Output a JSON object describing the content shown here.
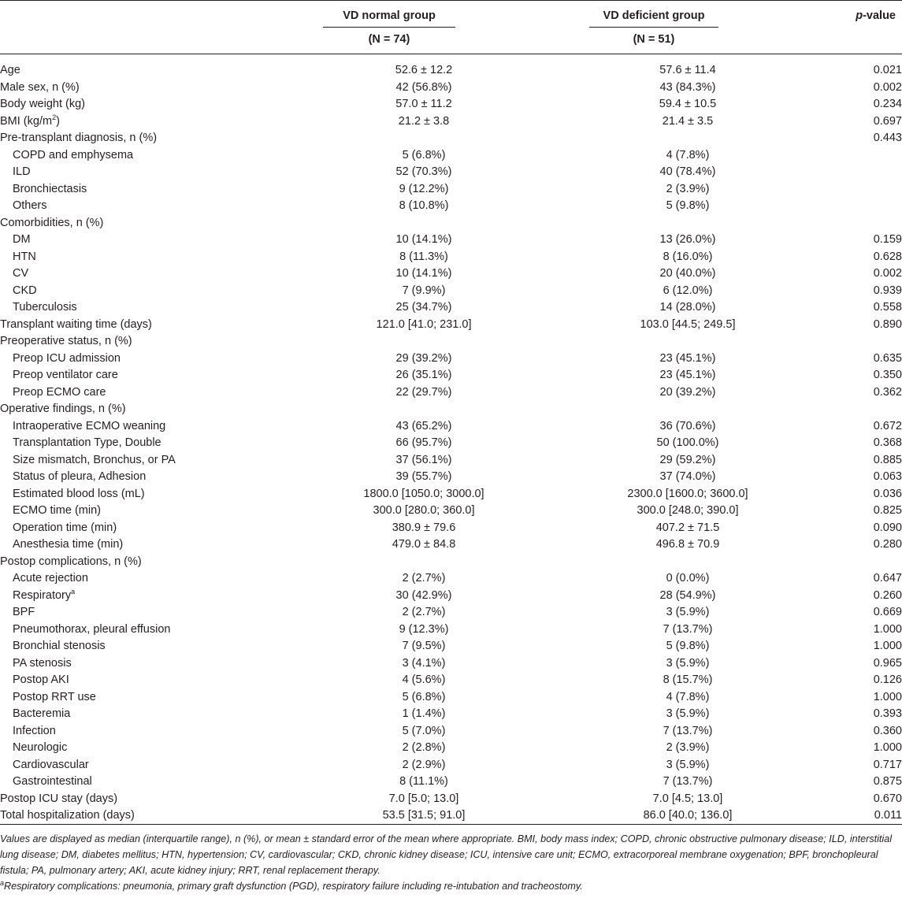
{
  "header": {
    "normal_group": "VD normal group",
    "normal_n": "(N = 74)",
    "deficient_group": "VD deficient group",
    "deficient_n": "(N = 51)",
    "pvalue_prefix": "p",
    "pvalue_suffix": "-value"
  },
  "rows": [
    {
      "label": "Age",
      "normal": "52.6 ± 12.2",
      "deficient": "57.6 ± 11.4",
      "p": "0.021",
      "indent": false
    },
    {
      "label": "Male sex, n (%)",
      "normal": "42 (56.8%)",
      "deficient": "43 (84.3%)",
      "p": "0.002",
      "indent": false
    },
    {
      "label": "Body weight (kg)",
      "normal": "57.0 ± 11.2",
      "deficient": "59.4 ± 10.5",
      "p": "0.234",
      "indent": false
    },
    {
      "label": "BMI (kg/m",
      "sup": "2",
      "label_after": ")",
      "normal": "21.2 ± 3.8",
      "deficient": "21.4 ± 3.5",
      "p": "0.697",
      "indent": false
    },
    {
      "label": "Pre-transplant diagnosis, n (%)",
      "normal": "",
      "deficient": "",
      "p": "0.443",
      "indent": false
    },
    {
      "label": "COPD and emphysema",
      "normal": "5 (6.8%)",
      "deficient": "4 (7.8%)",
      "p": "",
      "indent": true
    },
    {
      "label": "ILD",
      "normal": "52 (70.3%)",
      "deficient": "40 (78.4%)",
      "p": "",
      "indent": true
    },
    {
      "label": "Bronchiectasis",
      "normal": "9 (12.2%)",
      "deficient": "2 (3.9%)",
      "p": "",
      "indent": true
    },
    {
      "label": "Others",
      "normal": "8 (10.8%)",
      "deficient": "5 (9.8%)",
      "p": "",
      "indent": true
    },
    {
      "label": "Comorbidities, n (%)",
      "normal": "",
      "deficient": "",
      "p": "",
      "indent": false
    },
    {
      "label": "DM",
      "normal": "10 (14.1%)",
      "deficient": "13 (26.0%)",
      "p": "0.159",
      "indent": true
    },
    {
      "label": "HTN",
      "normal": "8 (11.3%)",
      "deficient": "8 (16.0%)",
      "p": "0.628",
      "indent": true
    },
    {
      "label": "CV",
      "normal": "10 (14.1%)",
      "deficient": "20 (40.0%)",
      "p": "0.002",
      "indent": true
    },
    {
      "label": "CKD",
      "normal": "7 (9.9%)",
      "deficient": "6 (12.0%)",
      "p": "0.939",
      "indent": true
    },
    {
      "label": "Tuberculosis",
      "normal": "25 (34.7%)",
      "deficient": "14 (28.0%)",
      "p": "0.558",
      "indent": true
    },
    {
      "label": "Transplant waiting time (days)",
      "normal": "121.0 [41.0; 231.0]",
      "deficient": "103.0 [44.5; 249.5]",
      "p": "0.890",
      "indent": false
    },
    {
      "label": "Preoperative status, n (%)",
      "normal": "",
      "deficient": "",
      "p": "",
      "indent": false
    },
    {
      "label": "Preop ICU admission",
      "normal": "29 (39.2%)",
      "deficient": "23 (45.1%)",
      "p": "0.635",
      "indent": true
    },
    {
      "label": "Preop ventilator care",
      "normal": "26 (35.1%)",
      "deficient": "23 (45.1%)",
      "p": "0.350",
      "indent": true
    },
    {
      "label": "Preop ECMO care",
      "normal": "22 (29.7%)",
      "deficient": "20 (39.2%)",
      "p": "0.362",
      "indent": true
    },
    {
      "label": "Operative findings, n (%)",
      "normal": "",
      "deficient": "",
      "p": "",
      "indent": false
    },
    {
      "label": "Intraoperative ECMO weaning",
      "normal": "43 (65.2%)",
      "deficient": "36 (70.6%)",
      "p": "0.672",
      "indent": true
    },
    {
      "label": "Transplantation Type, Double",
      "normal": "66 (95.7%)",
      "deficient": "50 (100.0%)",
      "p": "0.368",
      "indent": true
    },
    {
      "label": "Size mismatch, Bronchus, or PA",
      "normal": "37 (56.1%)",
      "deficient": "29 (59.2%)",
      "p": "0.885",
      "indent": true
    },
    {
      "label": "Status of pleura, Adhesion",
      "normal": "39 (55.7%)",
      "deficient": "37 (74.0%)",
      "p": "0.063",
      "indent": true
    },
    {
      "label": "Estimated blood loss (mL)",
      "normal": "1800.0 [1050.0; 3000.0]",
      "deficient": "2300.0 [1600.0; 3600.0]",
      "p": "0.036",
      "indent": true
    },
    {
      "label": "ECMO time (min)",
      "normal": "300.0 [280.0; 360.0]",
      "deficient": "300.0 [248.0; 390.0]",
      "p": "0.825",
      "indent": true
    },
    {
      "label": "Operation time (min)",
      "normal": "380.9 ± 79.6",
      "deficient": "407.2 ± 71.5",
      "p": "0.090",
      "indent": true
    },
    {
      "label": "Anesthesia time (min)",
      "normal": "479.0 ± 84.8",
      "deficient": "496.8 ± 70.9",
      "p": "0.280",
      "indent": true
    },
    {
      "label": "Postop complications, n (%)",
      "normal": "",
      "deficient": "",
      "p": "",
      "indent": false
    },
    {
      "label": "Acute rejection",
      "normal": "2 (2.7%)",
      "deficient": "0 (0.0%)",
      "p": "0.647",
      "indent": true
    },
    {
      "label": "Respiratory",
      "sup": "a",
      "label_after": "",
      "normal": "30 (42.9%)",
      "deficient": "28 (54.9%)",
      "p": "0.260",
      "indent": true
    },
    {
      "label": "BPF",
      "normal": "2 (2.7%)",
      "deficient": "3 (5.9%)",
      "p": "0.669",
      "indent": true
    },
    {
      "label": "Pneumothorax, pleural effusion",
      "normal": "9 (12.3%)",
      "deficient": "7 (13.7%)",
      "p": "1.000",
      "indent": true
    },
    {
      "label": "Bronchial stenosis",
      "normal": "7 (9.5%)",
      "deficient": "5 (9.8%)",
      "p": "1.000",
      "indent": true
    },
    {
      "label": "PA stenosis",
      "normal": "3 (4.1%)",
      "deficient": "3 (5.9%)",
      "p": "0.965",
      "indent": true
    },
    {
      "label": "Postop AKI",
      "normal": "4 (5.6%)",
      "deficient": "8 (15.7%)",
      "p": "0.126",
      "indent": true
    },
    {
      "label": "Postop RRT use",
      "normal": "5 (6.8%)",
      "deficient": "4 (7.8%)",
      "p": "1.000",
      "indent": true
    },
    {
      "label": "Bacteremia",
      "normal": "1 (1.4%)",
      "deficient": "3 (5.9%)",
      "p": "0.393",
      "indent": true
    },
    {
      "label": "Infection",
      "normal": "5 (7.0%)",
      "deficient": "7 (13.7%)",
      "p": "0.360",
      "indent": true
    },
    {
      "label": "Neurologic",
      "normal": "2 (2.8%)",
      "deficient": "2 (3.9%)",
      "p": "1.000",
      "indent": true
    },
    {
      "label": "Cardiovascular",
      "normal": "2 (2.9%)",
      "deficient": "3 (5.9%)",
      "p": "0.717",
      "indent": true
    },
    {
      "label": "Gastrointestinal",
      "normal": "8 (11.1%)",
      "deficient": "7 (13.7%)",
      "p": "0.875",
      "indent": true
    },
    {
      "label": "Postop ICU stay (days)",
      "normal": "7.0 [5.0; 13.0]",
      "deficient": "7.0 [4.5; 13.0]",
      "p": "0.670",
      "indent": false
    },
    {
      "label": "Total hospitalization (days)",
      "normal": "53.5 [31.5; 91.0]",
      "deficient": "86.0 [40.0; 136.0]",
      "p": "0.011",
      "indent": false
    }
  ],
  "footnote": {
    "values_note": "Values are displayed as median (interquartile range), n (%), or mean ± standard error of the mean where appropriate. BMI, body mass index; COPD, chronic obstructive pulmonary disease; ILD, interstitial lung disease; DM, diabetes mellitus; HTN, hypertension; CV, cardiovascular; CKD, chronic kidney disease; ICU, intensive care unit; ECMO, extracorporeal membrane oxygenation; BPF, bronchopleural fistula; PA, pulmonary artery; AKI, acute kidney injury; RRT, renal replacement therapy.",
    "a_marker": "a",
    "a_note": "Respiratory complications: pneumonia, primary graft dysfunction (PGD), respiratory failure including re-intubation and tracheostomy."
  }
}
